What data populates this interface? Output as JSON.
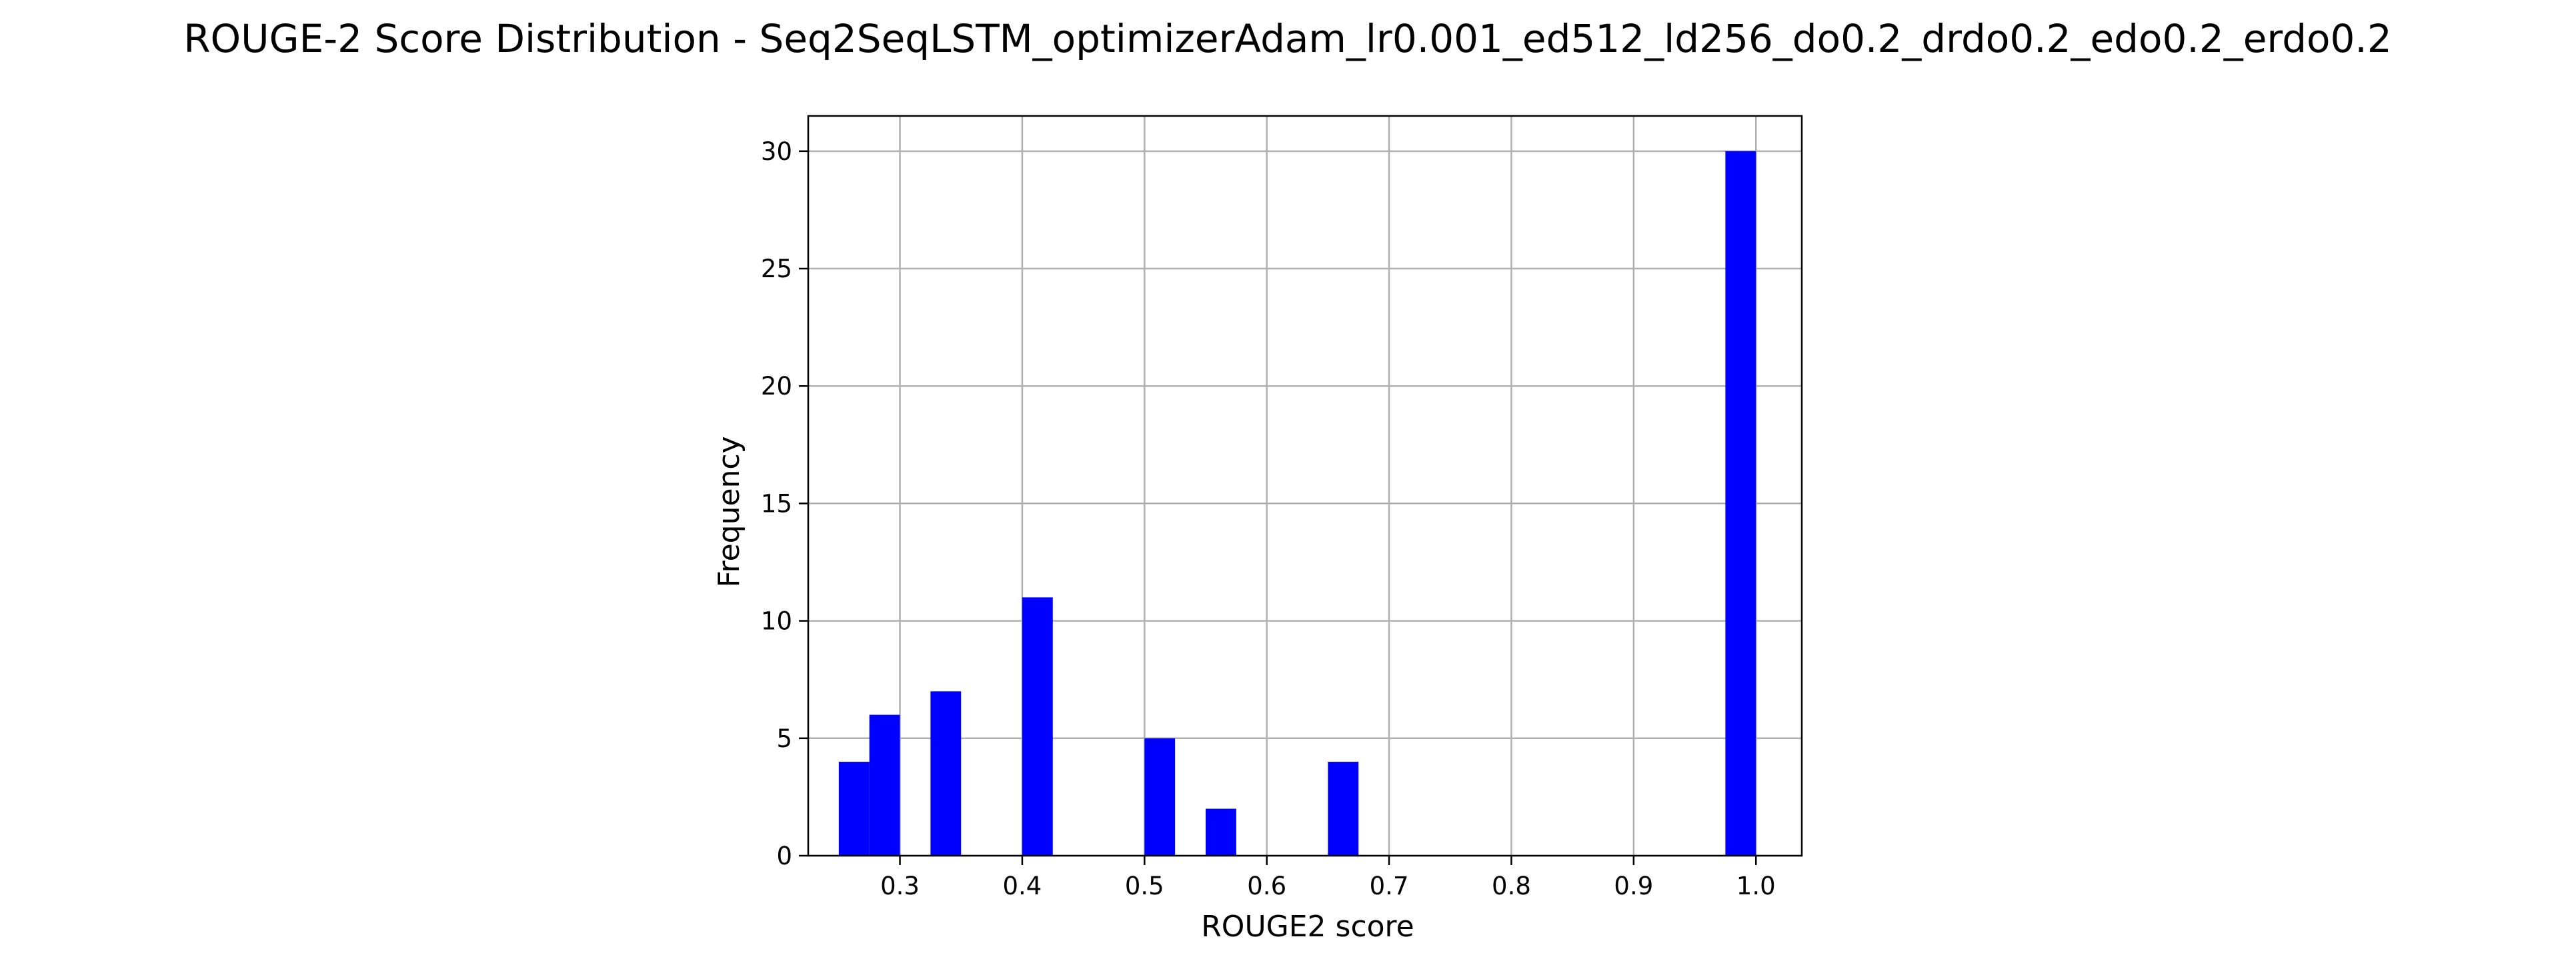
{
  "chart_data": {
    "type": "bar",
    "title": "ROUGE-2 Score Distribution - Seq2SeqLSTM_optimizerAdam_lr0.001_ed512_ld256_do0.2_drdo0.2_edo0.2_erdo0.2",
    "xlabel": "ROUGE2 score",
    "ylabel": "Frequency",
    "xlim": [
      0.225,
      1.0375
    ],
    "ylim": [
      0,
      31.5
    ],
    "xticks": [
      0.3,
      0.4,
      0.5,
      0.6,
      0.7,
      0.8,
      0.9,
      1.0
    ],
    "xtick_labels": [
      "0.3",
      "0.4",
      "0.5",
      "0.6",
      "0.7",
      "0.8",
      "0.9",
      "1.0"
    ],
    "yticks": [
      0,
      5,
      10,
      15,
      20,
      25,
      30
    ],
    "ytick_labels": [
      "0",
      "5",
      "10",
      "15",
      "20",
      "25",
      "30"
    ],
    "grid": true,
    "bar_color": "#0000ff",
    "bins": [
      {
        "x0": 0.25,
        "x1": 0.275,
        "count": 4
      },
      {
        "x0": 0.275,
        "x1": 0.3,
        "count": 6
      },
      {
        "x0": 0.325,
        "x1": 0.35,
        "count": 7
      },
      {
        "x0": 0.4,
        "x1": 0.425,
        "count": 11
      },
      {
        "x0": 0.5,
        "x1": 0.525,
        "count": 5
      },
      {
        "x0": 0.55,
        "x1": 0.575,
        "count": 2
      },
      {
        "x0": 0.65,
        "x1": 0.675,
        "count": 4
      },
      {
        "x0": 0.975,
        "x1": 1.0,
        "count": 30
      }
    ]
  }
}
